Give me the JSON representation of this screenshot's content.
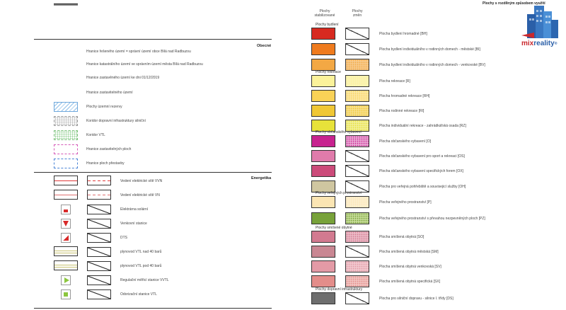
{
  "header": {
    "title": "Plochy s rozdílným způsobem využití",
    "col_stab": "Plochy\nstabilizované",
    "col_change": "Plochy\nzměn"
  },
  "logo": {
    "text_mix": "mix",
    "text_reality": "reality",
    "mark": "®"
  },
  "left": {
    "obecne_title": "Obecné",
    "energetika_title": "Energetika",
    "items": [
      "Hranice řešeného území = správní území obce Bílá nad Radbuzou",
      "Hranice katastrálního území ve správním území města Bílá nad Radbuzou",
      "Hranice zastavěného území ke dni 01/12/2019",
      "Hranice zastavitelného území",
      "Plochy územní rezervy",
      "Koridor dopravní infrastruktury silniční",
      "Koridor VTL",
      "Hranice zastavitelných ploch",
      "Hranice ploch přestavby"
    ],
    "energy": [
      "Vedení elektrické sítě VVN",
      "Vedení elektrické sítě VN",
      "Elektrárna solární",
      "Venkovní stanice",
      "DTS",
      "plynovod VTL nad 40 barů",
      "plynovod VTL pod 40 barů",
      "Regulační měřicí stanice VVTL",
      "Odorizační stanice VTL"
    ]
  },
  "right": {
    "groups": [
      {
        "name": "Plochy bydlení",
        "rows": [
          {
            "label": "Plocha bydlení hromadné [BH]",
            "color": "#d72a20",
            "change": "diag"
          },
          {
            "label": "Plocha bydlení individuálního v rodinných domech - městské [BI]",
            "color": "#ef7b1e",
            "change": "diag"
          },
          {
            "label": "Plocha bydlení individuálního v rodinných domech - venkovské [BV]",
            "color": "#f3a844",
            "change": "dots:#f6c98a"
          }
        ]
      },
      {
        "name": "Plochy rekreace",
        "rows": [
          {
            "label": "Plocha rekreace [R]",
            "color": "#fbf29a",
            "change": "dots:#fbf3b4"
          },
          {
            "label": "Plocha hromadné rekreace [RH]",
            "color": "#f9d257",
            "change": "dots:#fbe7a3"
          },
          {
            "label": "Plocha rodinné rekreace [RI]",
            "color": "#f0c735",
            "change": "dots:#f6df8a"
          },
          {
            "label": "Plocha individuální rekreace - zahrádkářská osada [RZ]",
            "color": "#e7e23a",
            "change": "dots:#f1ee94"
          }
        ]
      },
      {
        "name": "Plochy občanského vybavení",
        "rows": [
          {
            "label": "Plocha občanského vybavení [O]",
            "color": "#c7238f",
            "change": "dots:#e9a8d4"
          },
          {
            "label": "Plocha občanského vybavení pro sport a rekreaci [OS]",
            "color": "#e07bab",
            "change": "diag"
          },
          {
            "label": "Plocha občanského vybavení specifických forem [OX]",
            "color": "#cc4b7a",
            "change": "diag"
          },
          {
            "label": "Plocha pro veřejná pohřebiště a souvisejicí služby [OH]",
            "color": "#cfc6a0",
            "change": "diag"
          }
        ]
      },
      {
        "name": "Plochy veřejných prostranství",
        "rows": [
          {
            "label": "Plocha veřejného prostranství [P]",
            "color": "#fbe5b3",
            "change": "dots:#fcefcf"
          },
          {
            "label": "Plocha veřejného prostranství s převahou nezpevněných ploch [PZ]",
            "color": "#78a23a",
            "change": "dots:#c4da95"
          }
        ]
      },
      {
        "name": "Plochy smíšené obytné",
        "rows": [
          {
            "label": "Plocha smíšená obytná [SO]",
            "color": "#d27a90",
            "change": "dots:#eab8c5"
          },
          {
            "label": "Plocha smíšená obytná městská [SM]",
            "color": "#c98793",
            "change": "diag"
          },
          {
            "label": "Plocha smíšená obytná venkovská [SV]",
            "color": "#e39aa6",
            "change": "dots:#f1c6cd"
          },
          {
            "label": "Plocha smíšená obytná specifická [SX]",
            "color": "#e38d8a",
            "change": "dots:#f1c2bf"
          }
        ]
      },
      {
        "name": "Plochy dopravní infrastruktury",
        "rows": [
          {
            "label": "Plocha pro silniční dopravu - silnice I. třídy [DS]",
            "color": "#6e6e6e",
            "change": "diag"
          }
        ]
      }
    ]
  }
}
